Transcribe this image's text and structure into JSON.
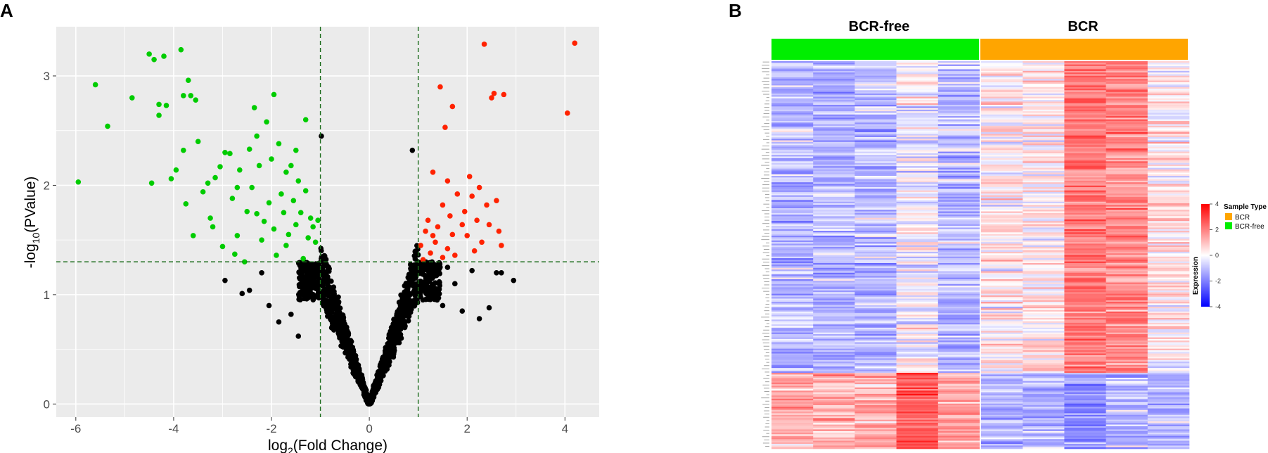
{
  "panel_labels": {
    "a": "A",
    "b": "B"
  },
  "colors": {
    "panel_bg": "#ebebeb",
    "grid": "#ffffff",
    "down": "#00cc00",
    "up": "#ff2200",
    "ns": "#000000",
    "threshold": "#1a6b1a",
    "bcr": "#ffa500",
    "bcr_free": "#00ee00",
    "low": "#0000ff",
    "mid": "#ffffff",
    "high": "#ff0000"
  },
  "chart_data": [
    {
      "type": "scatter",
      "panel": "A",
      "xlabel": {
        "main": "log",
        "sub": "2",
        "rest": "(Fold Change)"
      },
      "ylabel": {
        "main": "-log",
        "sub": "10",
        "rest": "(PValue)"
      },
      "xlim": [
        -6.4,
        4.7
      ],
      "ylim": [
        -0.12,
        3.45
      ],
      "x_ticks": [
        -6,
        -4,
        -2,
        0,
        2,
        4
      ],
      "y_ticks": [
        0,
        1,
        2,
        3
      ],
      "thresholds": {
        "log2fc": [
          -1,
          1
        ],
        "neg_log10_p": 1.3
      },
      "down_points": [
        [
          -5.95,
          2.03
        ],
        [
          -5.6,
          2.92
        ],
        [
          -5.35,
          2.54
        ],
        [
          -4.85,
          2.8
        ],
        [
          -4.5,
          3.2
        ],
        [
          -4.4,
          3.15
        ],
        [
          -4.3,
          2.74
        ],
        [
          -4.3,
          2.64
        ],
        [
          -4.45,
          2.02
        ],
        [
          -4.2,
          3.18
        ],
        [
          -4.15,
          2.73
        ],
        [
          -4.05,
          2.06
        ],
        [
          -3.95,
          2.14
        ],
        [
          -3.85,
          3.24
        ],
        [
          -3.8,
          2.82
        ],
        [
          -3.8,
          2.32
        ],
        [
          -3.75,
          1.83
        ],
        [
          -3.7,
          2.96
        ],
        [
          -3.65,
          2.82
        ],
        [
          -3.6,
          1.54
        ],
        [
          -3.55,
          2.78
        ],
        [
          -3.5,
          2.4
        ],
        [
          -3.4,
          1.94
        ],
        [
          -3.3,
          2.02
        ],
        [
          -3.25,
          1.7
        ],
        [
          -3.2,
          1.62
        ],
        [
          -3.15,
          2.07
        ],
        [
          -3.05,
          2.17
        ],
        [
          -3.0,
          1.44
        ],
        [
          -2.95,
          2.3
        ],
        [
          -2.85,
          2.29
        ],
        [
          -2.8,
          1.88
        ],
        [
          -2.75,
          1.37
        ],
        [
          -2.7,
          1.98
        ],
        [
          -2.7,
          1.54
        ],
        [
          -2.65,
          2.14
        ],
        [
          -2.55,
          1.3
        ],
        [
          -2.5,
          1.76
        ],
        [
          -2.45,
          2.33
        ],
        [
          -2.4,
          1.98
        ],
        [
          -2.35,
          2.71
        ],
        [
          -2.3,
          2.45
        ],
        [
          -2.3,
          1.74
        ],
        [
          -2.25,
          2.18
        ],
        [
          -2.2,
          1.5
        ],
        [
          -2.15,
          1.67
        ],
        [
          -2.1,
          2.58
        ],
        [
          -2.05,
          1.84
        ],
        [
          -2.0,
          2.24
        ],
        [
          -1.95,
          2.83
        ],
        [
          -1.95,
          1.6
        ],
        [
          -1.9,
          1.36
        ],
        [
          -1.85,
          2.38
        ],
        [
          -1.8,
          1.92
        ],
        [
          -1.75,
          1.75
        ],
        [
          -1.7,
          2.12
        ],
        [
          -1.7,
          1.45
        ],
        [
          -1.65,
          1.55
        ],
        [
          -1.6,
          2.18
        ],
        [
          -1.55,
          1.86
        ],
        [
          -1.5,
          2.32
        ],
        [
          -1.5,
          1.64
        ],
        [
          -1.45,
          2.04
        ],
        [
          -1.4,
          1.75
        ],
        [
          -1.35,
          1.33
        ],
        [
          -1.3,
          2.6
        ],
        [
          -1.3,
          1.95
        ],
        [
          -1.25,
          1.52
        ],
        [
          -1.2,
          1.7
        ],
        [
          -1.15,
          1.62
        ],
        [
          -1.1,
          1.48
        ],
        [
          -1.05,
          1.68
        ]
      ],
      "up_points": [
        [
          1.05,
          1.45
        ],
        [
          1.1,
          1.32
        ],
        [
          1.15,
          1.58
        ],
        [
          1.2,
          1.68
        ],
        [
          1.25,
          1.38
        ],
        [
          1.3,
          2.12
        ],
        [
          1.3,
          1.54
        ],
        [
          1.35,
          1.48
        ],
        [
          1.4,
          1.62
        ],
        [
          1.45,
          2.9
        ],
        [
          1.5,
          1.34
        ],
        [
          1.5,
          1.82
        ],
        [
          1.55,
          2.53
        ],
        [
          1.6,
          1.42
        ],
        [
          1.6,
          2.04
        ],
        [
          1.65,
          1.72
        ],
        [
          1.7,
          2.72
        ],
        [
          1.7,
          1.55
        ],
        [
          1.75,
          1.36
        ],
        [
          1.8,
          1.92
        ],
        [
          1.9,
          1.64
        ],
        [
          1.95,
          1.76
        ],
        [
          2.0,
          1.54
        ],
        [
          2.05,
          2.08
        ],
        [
          2.1,
          1.9
        ],
        [
          2.15,
          1.4
        ],
        [
          2.2,
          1.68
        ],
        [
          2.25,
          1.98
        ],
        [
          2.3,
          1.48
        ],
        [
          2.35,
          3.29
        ],
        [
          2.4,
          1.82
        ],
        [
          2.45,
          1.64
        ],
        [
          2.5,
          2.8
        ],
        [
          2.55,
          2.84
        ],
        [
          2.6,
          1.86
        ],
        [
          2.65,
          1.58
        ],
        [
          2.7,
          1.45
        ],
        [
          2.75,
          2.83
        ],
        [
          4.05,
          2.66
        ],
        [
          4.2,
          3.3
        ]
      ]
    },
    {
      "type": "heatmap",
      "panel": "B",
      "groups": [
        {
          "label": "BCR-free",
          "n_samples": 5
        },
        {
          "label": "BCR",
          "n_samples": 5
        }
      ],
      "n_genes": 240,
      "color_range": [
        -4,
        4
      ],
      "legend": {
        "sample_type_title": "Sample Type",
        "sample_types": [
          "BCR",
          "BCR-free"
        ],
        "expression_title": "Expression",
        "ticks": [
          "4",
          "2",
          "0",
          "-2",
          "-4"
        ]
      }
    }
  ]
}
